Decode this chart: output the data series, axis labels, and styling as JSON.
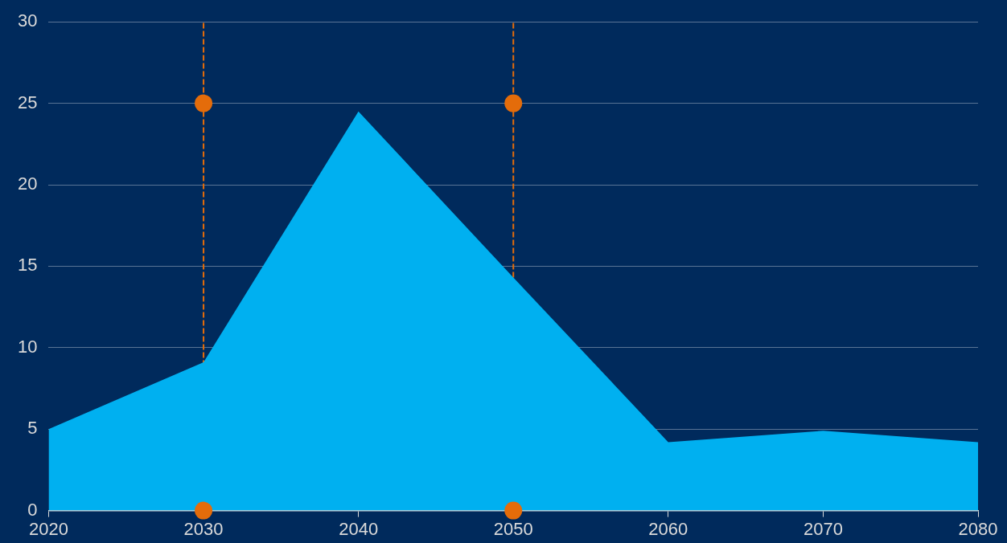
{
  "chart_data": {
    "type": "area",
    "xlim": [
      2020,
      2080
    ],
    "xticks": [
      2020,
      2030,
      2040,
      2050,
      2060,
      2070,
      2080
    ],
    "ylim": [
      0,
      30
    ],
    "yticks": [
      0,
      5,
      10,
      15,
      20,
      25,
      30
    ],
    "grid": "y",
    "legend": false,
    "series": [
      {
        "type": "area",
        "color": "#00b0f0",
        "x": [
          2020,
          2030,
          2040,
          2050,
          2060,
          2070,
          2080
        ],
        "values": [
          5,
          9.1,
          24.5,
          14.3,
          4.2,
          4.9,
          4.2
        ],
        "marker": "none"
      },
      {
        "type": "scatter",
        "color": "#e46c0a",
        "x": [
          2030,
          2030,
          2050,
          2050
        ],
        "values": [
          0,
          25,
          0,
          25
        ],
        "marker": "circle"
      }
    ],
    "ref_lines": [
      {
        "axis": "x",
        "value": 2030,
        "color": "#e46c0a",
        "line_style": "dashed"
      },
      {
        "axis": "x",
        "value": 2050,
        "color": "#e46c0a",
        "line_style": "dashed"
      }
    ]
  }
}
